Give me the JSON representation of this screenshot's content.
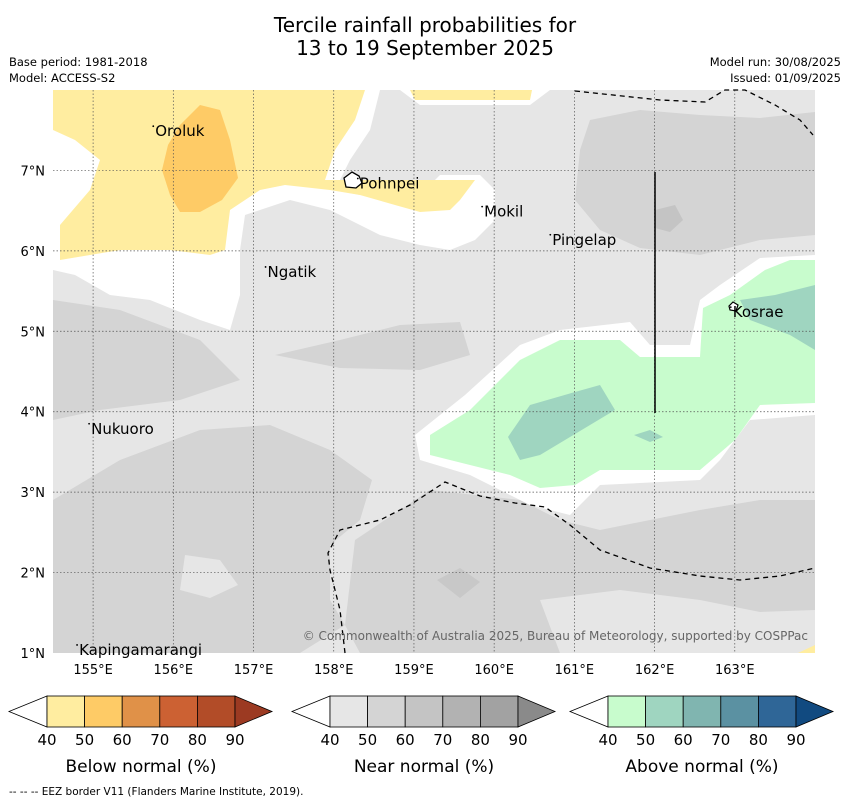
{
  "title_line1": "Tercile rainfall probabilities for",
  "title_line2": "13 to 19 September 2025",
  "base_period": "Base period: 1981-2018",
  "model": "Model: ACCESS-S2",
  "model_run": "Model run: 30/08/2025",
  "issued": "Issued: 01/09/2025",
  "copyright": "© Commonwealth of Australia 2025, Bureau of Meteorology, supported by COSPPac",
  "footer": "--  --  -- EEZ border V11 (Flanders Marine Institute, 2019).",
  "map": {
    "lon_range": [
      154.5,
      164.0
    ],
    "lat_range": [
      1.0,
      8.0
    ],
    "lon_ticks": [
      "155°E",
      "156°E",
      "157°E",
      "158°E",
      "159°E",
      "160°E",
      "161°E",
      "162°E",
      "163°E"
    ],
    "lat_ticks": [
      "1°N",
      "2°N",
      "3°N",
      "4°N",
      "5°N",
      "6°N",
      "7°N"
    ],
    "places": [
      {
        "name": "Oroluk",
        "lon": 155.75,
        "lat": 7.55
      },
      {
        "name": "Pohnpei",
        "lon": 158.3,
        "lat": 6.9
      },
      {
        "name": "Mokil",
        "lon": 159.85,
        "lat": 6.55
      },
      {
        "name": "Pingelap",
        "lon": 160.7,
        "lat": 6.2
      },
      {
        "name": "Ngatik",
        "lon": 157.15,
        "lat": 5.8
      },
      {
        "name": "Kosrae",
        "lon": 162.95,
        "lat": 5.3
      },
      {
        "name": "Nukuoro",
        "lon": 154.95,
        "lat": 3.85
      },
      {
        "name": "Kapingamarangi",
        "lon": 154.8,
        "lat": 1.1
      }
    ]
  },
  "colorbars": [
    {
      "label": "Below normal (%)",
      "ticks": [
        "40",
        "50",
        "60",
        "70",
        "80",
        "90"
      ],
      "colors": [
        "#ffeda0",
        "#fecb66",
        "#e09148",
        "#cc6133",
        "#b24c28",
        "#9c3a22"
      ]
    },
    {
      "label": "Near normal (%)",
      "ticks": [
        "40",
        "50",
        "60",
        "70",
        "80",
        "90"
      ],
      "colors": [
        "#e6e6e6",
        "#d4d4d4",
        "#c4c4c4",
        "#b2b2b2",
        "#a2a2a2",
        "#8a8a8a"
      ]
    },
    {
      "label": "Above normal (%)",
      "ticks": [
        "40",
        "50",
        "60",
        "70",
        "80",
        "90"
      ],
      "colors": [
        "#c8fccd",
        "#9fd5c0",
        "#80b5b0",
        "#5b91a2",
        "#2f6697",
        "#114a80"
      ]
    }
  ],
  "colors": {
    "near_light": "#e6e6e6",
    "near_mid": "#d4d4d4",
    "below_light": "#ffeda0",
    "below_mid": "#fecb66",
    "above_light": "#c8fccd",
    "above_mid": "#9fd5c0"
  }
}
